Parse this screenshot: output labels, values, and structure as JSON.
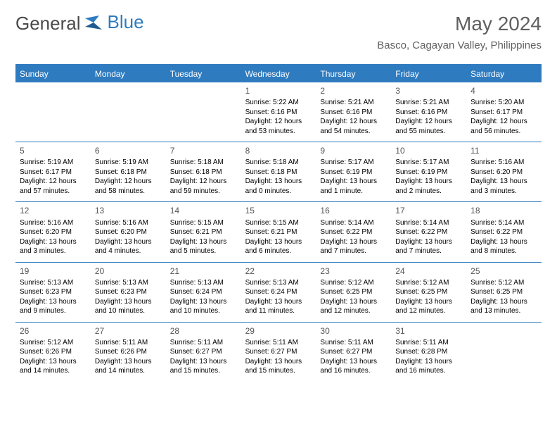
{
  "brand": {
    "word1": "General",
    "word2": "Blue"
  },
  "title": "May 2024",
  "location": "Basco, Cagayan Valley, Philippines",
  "colors": {
    "brand_gray": "#4a4a4a",
    "brand_blue": "#2f7bbf",
    "header_bg": "#2f7bbf",
    "header_text": "#ffffff",
    "divider": "#2f7bbf",
    "daynum": "#555555",
    "body_text": "#000000",
    "title_text": "#606060",
    "background": "#ffffff"
  },
  "typography": {
    "logo_fontsize": 26,
    "title_fontsize": 28,
    "location_fontsize": 15,
    "dow_fontsize": 12,
    "daynum_fontsize": 12,
    "cell_fontsize": 10
  },
  "dow": [
    "Sunday",
    "Monday",
    "Tuesday",
    "Wednesday",
    "Thursday",
    "Friday",
    "Saturday"
  ],
  "weeks": [
    [
      null,
      null,
      null,
      {
        "d": "1",
        "sr": "5:22 AM",
        "ss": "6:16 PM",
        "dl": "12 hours and 53 minutes."
      },
      {
        "d": "2",
        "sr": "5:21 AM",
        "ss": "6:16 PM",
        "dl": "12 hours and 54 minutes."
      },
      {
        "d": "3",
        "sr": "5:21 AM",
        "ss": "6:16 PM",
        "dl": "12 hours and 55 minutes."
      },
      {
        "d": "4",
        "sr": "5:20 AM",
        "ss": "6:17 PM",
        "dl": "12 hours and 56 minutes."
      }
    ],
    [
      {
        "d": "5",
        "sr": "5:19 AM",
        "ss": "6:17 PM",
        "dl": "12 hours and 57 minutes."
      },
      {
        "d": "6",
        "sr": "5:19 AM",
        "ss": "6:18 PM",
        "dl": "12 hours and 58 minutes."
      },
      {
        "d": "7",
        "sr": "5:18 AM",
        "ss": "6:18 PM",
        "dl": "12 hours and 59 minutes."
      },
      {
        "d": "8",
        "sr": "5:18 AM",
        "ss": "6:18 PM",
        "dl": "13 hours and 0 minutes."
      },
      {
        "d": "9",
        "sr": "5:17 AM",
        "ss": "6:19 PM",
        "dl": "13 hours and 1 minute."
      },
      {
        "d": "10",
        "sr": "5:17 AM",
        "ss": "6:19 PM",
        "dl": "13 hours and 2 minutes."
      },
      {
        "d": "11",
        "sr": "5:16 AM",
        "ss": "6:20 PM",
        "dl": "13 hours and 3 minutes."
      }
    ],
    [
      {
        "d": "12",
        "sr": "5:16 AM",
        "ss": "6:20 PM",
        "dl": "13 hours and 3 minutes."
      },
      {
        "d": "13",
        "sr": "5:16 AM",
        "ss": "6:20 PM",
        "dl": "13 hours and 4 minutes."
      },
      {
        "d": "14",
        "sr": "5:15 AM",
        "ss": "6:21 PM",
        "dl": "13 hours and 5 minutes."
      },
      {
        "d": "15",
        "sr": "5:15 AM",
        "ss": "6:21 PM",
        "dl": "13 hours and 6 minutes."
      },
      {
        "d": "16",
        "sr": "5:14 AM",
        "ss": "6:22 PM",
        "dl": "13 hours and 7 minutes."
      },
      {
        "d": "17",
        "sr": "5:14 AM",
        "ss": "6:22 PM",
        "dl": "13 hours and 7 minutes."
      },
      {
        "d": "18",
        "sr": "5:14 AM",
        "ss": "6:22 PM",
        "dl": "13 hours and 8 minutes."
      }
    ],
    [
      {
        "d": "19",
        "sr": "5:13 AM",
        "ss": "6:23 PM",
        "dl": "13 hours and 9 minutes."
      },
      {
        "d": "20",
        "sr": "5:13 AM",
        "ss": "6:23 PM",
        "dl": "13 hours and 10 minutes."
      },
      {
        "d": "21",
        "sr": "5:13 AM",
        "ss": "6:24 PM",
        "dl": "13 hours and 10 minutes."
      },
      {
        "d": "22",
        "sr": "5:13 AM",
        "ss": "6:24 PM",
        "dl": "13 hours and 11 minutes."
      },
      {
        "d": "23",
        "sr": "5:12 AM",
        "ss": "6:25 PM",
        "dl": "13 hours and 12 minutes."
      },
      {
        "d": "24",
        "sr": "5:12 AM",
        "ss": "6:25 PM",
        "dl": "13 hours and 12 minutes."
      },
      {
        "d": "25",
        "sr": "5:12 AM",
        "ss": "6:25 PM",
        "dl": "13 hours and 13 minutes."
      }
    ],
    [
      {
        "d": "26",
        "sr": "5:12 AM",
        "ss": "6:26 PM",
        "dl": "13 hours and 14 minutes."
      },
      {
        "d": "27",
        "sr": "5:11 AM",
        "ss": "6:26 PM",
        "dl": "13 hours and 14 minutes."
      },
      {
        "d": "28",
        "sr": "5:11 AM",
        "ss": "6:27 PM",
        "dl": "13 hours and 15 minutes."
      },
      {
        "d": "29",
        "sr": "5:11 AM",
        "ss": "6:27 PM",
        "dl": "13 hours and 15 minutes."
      },
      {
        "d": "30",
        "sr": "5:11 AM",
        "ss": "6:27 PM",
        "dl": "13 hours and 16 minutes."
      },
      {
        "d": "31",
        "sr": "5:11 AM",
        "ss": "6:28 PM",
        "dl": "13 hours and 16 minutes."
      },
      null
    ]
  ],
  "labels": {
    "sunrise": "Sunrise:",
    "sunset": "Sunset:",
    "daylight": "Daylight:"
  }
}
